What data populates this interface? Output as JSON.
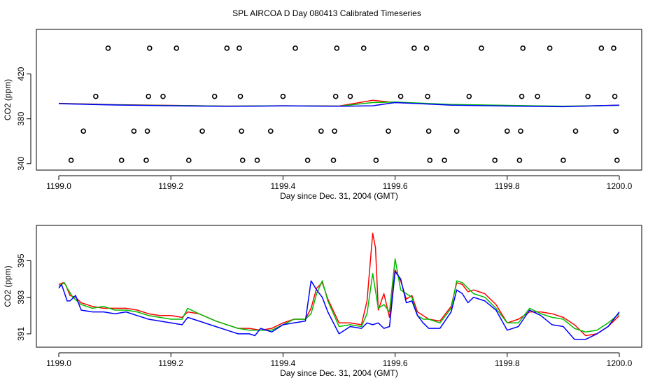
{
  "figure": {
    "title": "SPL AIRCOA D  Day 080413  Calibrated Timeseries"
  },
  "colors": {
    "red": "#ff0000",
    "green": "#00bb00",
    "blue": "#0000ff",
    "axis": "#000000"
  },
  "chart_data": [
    {
      "type": "line",
      "title": "",
      "xlabel": "Day since Dec. 31, 2004 (GMT)",
      "ylabel": "CO2 (ppm)",
      "xlim": [
        1199.0,
        1200.0
      ],
      "ylim": [
        338,
        456
      ],
      "xticks": [
        1199.0,
        1199.2,
        1199.4,
        1199.6,
        1199.8,
        1200.0
      ],
      "xtick_labels": [
        "1199.0",
        "1199.2",
        "1199.4",
        "1199.6",
        "1199.8",
        "1200.0"
      ],
      "yticks": [
        340,
        380,
        420
      ],
      "ytick_labels": [
        "340",
        "380",
        "420"
      ],
      "grid": false,
      "series": [
        {
          "name": "red",
          "color": "#ff0000",
          "x": [
            1199.0,
            1199.1,
            1199.2,
            1199.3,
            1199.4,
            1199.5,
            1199.56,
            1199.6,
            1199.7,
            1199.8,
            1199.9,
            1200.0
          ],
          "y": [
            393.8,
            392.6,
            392.0,
            391.3,
            391.6,
            391.4,
            396.5,
            394.5,
            392.6,
            391.8,
            391.0,
            392.2
          ]
        },
        {
          "name": "green",
          "color": "#00bb00",
          "x": [
            1199.0,
            1199.1,
            1199.2,
            1199.3,
            1199.4,
            1199.5,
            1199.56,
            1199.6,
            1199.7,
            1199.8,
            1199.9,
            1200.0
          ],
          "y": [
            393.6,
            392.5,
            391.9,
            391.3,
            391.6,
            391.3,
            394.5,
            395.0,
            392.8,
            392.0,
            391.2,
            392.0
          ]
        },
        {
          "name": "blue",
          "color": "#0000ff",
          "x": [
            1199.0,
            1199.1,
            1199.2,
            1199.3,
            1199.4,
            1199.5,
            1199.56,
            1199.6,
            1199.7,
            1199.8,
            1199.9,
            1200.0
          ],
          "y": [
            393.5,
            392.3,
            391.6,
            391.1,
            391.5,
            391.2,
            391.6,
            394.5,
            392.2,
            391.4,
            390.8,
            392.2
          ]
        }
      ],
      "markers": [
        {
          "x": 1199.022,
          "y": 343
        },
        {
          "x": 1199.044,
          "y": 369
        },
        {
          "x": 1199.066,
          "y": 400
        },
        {
          "x": 1199.088,
          "y": 443
        },
        {
          "x": 1199.112,
          "y": 343
        },
        {
          "x": 1199.134,
          "y": 369
        },
        {
          "x": 1199.156,
          "y": 343
        },
        {
          "x": 1199.158,
          "y": 369
        },
        {
          "x": 1199.16,
          "y": 400
        },
        {
          "x": 1199.162,
          "y": 443
        },
        {
          "x": 1199.186,
          "y": 400
        },
        {
          "x": 1199.21,
          "y": 443
        },
        {
          "x": 1199.232,
          "y": 343
        },
        {
          "x": 1199.256,
          "y": 369
        },
        {
          "x": 1199.278,
          "y": 400
        },
        {
          "x": 1199.3,
          "y": 443
        },
        {
          "x": 1199.322,
          "y": 443
        },
        {
          "x": 1199.324,
          "y": 400
        },
        {
          "x": 1199.326,
          "y": 369
        },
        {
          "x": 1199.328,
          "y": 343
        },
        {
          "x": 1199.354,
          "y": 343
        },
        {
          "x": 1199.378,
          "y": 369
        },
        {
          "x": 1199.4,
          "y": 400
        },
        {
          "x": 1199.422,
          "y": 443
        },
        {
          "x": 1199.444,
          "y": 343
        },
        {
          "x": 1199.468,
          "y": 369
        },
        {
          "x": 1199.49,
          "y": 343
        },
        {
          "x": 1199.492,
          "y": 369
        },
        {
          "x": 1199.494,
          "y": 400
        },
        {
          "x": 1199.496,
          "y": 443
        },
        {
          "x": 1199.52,
          "y": 400
        },
        {
          "x": 1199.544,
          "y": 443
        },
        {
          "x": 1199.566,
          "y": 343
        },
        {
          "x": 1199.588,
          "y": 369
        },
        {
          "x": 1199.61,
          "y": 400
        },
        {
          "x": 1199.634,
          "y": 443
        },
        {
          "x": 1199.656,
          "y": 443
        },
        {
          "x": 1199.658,
          "y": 400
        },
        {
          "x": 1199.66,
          "y": 369
        },
        {
          "x": 1199.662,
          "y": 343
        },
        {
          "x": 1199.688,
          "y": 343
        },
        {
          "x": 1199.71,
          "y": 369
        },
        {
          "x": 1199.732,
          "y": 400
        },
        {
          "x": 1199.754,
          "y": 443
        },
        {
          "x": 1199.778,
          "y": 343
        },
        {
          "x": 1199.8,
          "y": 369
        },
        {
          "x": 1199.822,
          "y": 343
        },
        {
          "x": 1199.824,
          "y": 369
        },
        {
          "x": 1199.826,
          "y": 400
        },
        {
          "x": 1199.828,
          "y": 443
        },
        {
          "x": 1199.854,
          "y": 400
        },
        {
          "x": 1199.876,
          "y": 443
        },
        {
          "x": 1199.9,
          "y": 343
        },
        {
          "x": 1199.922,
          "y": 369
        },
        {
          "x": 1199.944,
          "y": 400
        },
        {
          "x": 1199.968,
          "y": 443
        },
        {
          "x": 1199.99,
          "y": 443
        },
        {
          "x": 1199.992,
          "y": 400
        },
        {
          "x": 1199.994,
          "y": 369
        },
        {
          "x": 1199.996,
          "y": 343
        }
      ]
    },
    {
      "type": "line",
      "title": "",
      "xlabel": "Day since Dec. 31, 2004 (GMT)",
      "ylabel": "CO2 (ppm)",
      "xlim": [
        1199.0,
        1200.0
      ],
      "ylim": [
        390.5,
        396.7
      ],
      "xticks": [
        1199.0,
        1199.2,
        1199.4,
        1199.6,
        1199.8,
        1200.0
      ],
      "xtick_labels": [
        "1199.0",
        "1199.2",
        "1199.4",
        "1199.6",
        "1199.8",
        "1200.0"
      ],
      "yticks": [
        391,
        393,
        395
      ],
      "ytick_labels": [
        "391",
        "393",
        "395"
      ],
      "grid": false,
      "series": [
        {
          "name": "red",
          "color": "#ff0000",
          "x": [
            1199.0,
            1199.008,
            1199.012,
            1199.02,
            1199.03,
            1199.04,
            1199.06,
            1199.08,
            1199.1,
            1199.12,
            1199.14,
            1199.16,
            1199.18,
            1199.2,
            1199.22,
            1199.23,
            1199.25,
            1199.28,
            1199.3,
            1199.32,
            1199.34,
            1199.36,
            1199.38,
            1199.4,
            1199.42,
            1199.44,
            1199.45,
            1199.46,
            1199.47,
            1199.48,
            1199.5,
            1199.52,
            1199.54,
            1199.55,
            1199.56,
            1199.565,
            1199.57,
            1199.58,
            1199.59,
            1199.6,
            1199.61,
            1199.62,
            1199.63,
            1199.64,
            1199.65,
            1199.66,
            1199.68,
            1199.7,
            1199.71,
            1199.72,
            1199.73,
            1199.74,
            1199.76,
            1199.78,
            1199.8,
            1199.82,
            1199.84,
            1199.86,
            1199.88,
            1199.9,
            1199.92,
            1199.94,
            1199.96,
            1199.98,
            1200.0
          ],
          "y": [
            393.7,
            393.8,
            393.7,
            393.1,
            393.0,
            392.7,
            392.5,
            392.4,
            392.4,
            392.4,
            392.3,
            392.1,
            392.0,
            392.0,
            391.9,
            392.2,
            392.1,
            391.7,
            391.5,
            391.3,
            391.3,
            391.2,
            391.3,
            391.6,
            391.8,
            391.8,
            392.4,
            393.5,
            393.8,
            392.9,
            391.6,
            391.6,
            391.5,
            392.8,
            396.5,
            395.7,
            392.3,
            393.2,
            391.9,
            394.5,
            393.9,
            392.9,
            393.1,
            392.2,
            392.0,
            391.8,
            391.7,
            392.5,
            393.8,
            393.7,
            393.3,
            393.4,
            393.2,
            392.6,
            391.6,
            391.8,
            392.2,
            392.2,
            392.1,
            391.9,
            391.5,
            390.9,
            391.0,
            391.4,
            392.0
          ]
        },
        {
          "name": "green",
          "color": "#00bb00",
          "x": [
            1199.0,
            1199.01,
            1199.015,
            1199.025,
            1199.04,
            1199.06,
            1199.08,
            1199.1,
            1199.12,
            1199.14,
            1199.16,
            1199.18,
            1199.2,
            1199.22,
            1199.23,
            1199.25,
            1199.28,
            1199.3,
            1199.32,
            1199.34,
            1199.36,
            1199.38,
            1199.4,
            1199.42,
            1199.44,
            1199.45,
            1199.46,
            1199.47,
            1199.48,
            1199.5,
            1199.52,
            1199.54,
            1199.55,
            1199.56,
            1199.57,
            1199.58,
            1199.59,
            1199.6,
            1199.61,
            1199.62,
            1199.63,
            1199.64,
            1199.65,
            1199.66,
            1199.68,
            1199.7,
            1199.71,
            1199.72,
            1199.73,
            1199.74,
            1199.76,
            1199.78,
            1199.8,
            1199.82,
            1199.84,
            1199.86,
            1199.88,
            1199.9,
            1199.92,
            1199.94,
            1199.96,
            1199.98,
            1200.0
          ],
          "y": [
            393.6,
            393.8,
            393.5,
            393.0,
            392.6,
            392.4,
            392.5,
            392.3,
            392.3,
            392.2,
            392.0,
            391.9,
            391.8,
            391.8,
            392.4,
            392.1,
            391.7,
            391.5,
            391.3,
            391.2,
            391.2,
            391.2,
            391.5,
            391.8,
            391.8,
            392.1,
            393.2,
            393.9,
            392.8,
            391.4,
            391.5,
            391.4,
            392.1,
            394.3,
            392.4,
            392.6,
            392.2,
            395.1,
            393.4,
            393.2,
            393.0,
            392.0,
            391.8,
            391.8,
            391.6,
            392.4,
            393.9,
            393.8,
            393.5,
            393.2,
            393.0,
            392.4,
            391.6,
            391.6,
            392.4,
            392.1,
            391.9,
            391.8,
            391.3,
            391.1,
            391.2,
            391.6,
            392.1
          ]
        },
        {
          "name": "blue",
          "color": "#0000ff",
          "x": [
            1199.0,
            1199.005,
            1199.015,
            1199.02,
            1199.03,
            1199.04,
            1199.06,
            1199.08,
            1199.1,
            1199.12,
            1199.14,
            1199.16,
            1199.18,
            1199.2,
            1199.22,
            1199.23,
            1199.25,
            1199.28,
            1199.3,
            1199.32,
            1199.34,
            1199.35,
            1199.36,
            1199.38,
            1199.4,
            1199.42,
            1199.44,
            1199.45,
            1199.46,
            1199.47,
            1199.48,
            1199.5,
            1199.52,
            1199.54,
            1199.55,
            1199.56,
            1199.57,
            1199.58,
            1199.59,
            1199.6,
            1199.61,
            1199.62,
            1199.63,
            1199.64,
            1199.65,
            1199.66,
            1199.68,
            1199.7,
            1199.71,
            1199.72,
            1199.73,
            1199.74,
            1199.76,
            1199.78,
            1199.8,
            1199.82,
            1199.84,
            1199.86,
            1199.88,
            1199.9,
            1199.92,
            1199.94,
            1199.96,
            1199.98,
            1200.0
          ],
          "y": [
            393.5,
            393.7,
            392.8,
            392.8,
            393.1,
            392.3,
            392.2,
            392.2,
            392.1,
            392.2,
            392.0,
            391.8,
            391.7,
            391.6,
            391.5,
            391.9,
            391.7,
            391.4,
            391.2,
            391.0,
            391.0,
            390.9,
            391.3,
            391.1,
            391.5,
            391.6,
            391.7,
            393.9,
            393.4,
            393.0,
            392.2,
            391.0,
            391.4,
            391.3,
            391.6,
            391.5,
            391.6,
            391.3,
            391.4,
            394.4,
            394.0,
            392.7,
            392.8,
            392.0,
            391.6,
            391.3,
            391.3,
            392.2,
            393.4,
            393.2,
            392.7,
            393.0,
            392.8,
            392.3,
            391.2,
            391.4,
            392.3,
            392.0,
            391.5,
            391.4,
            390.7,
            390.7,
            391.0,
            391.4,
            392.2
          ]
        }
      ]
    }
  ]
}
